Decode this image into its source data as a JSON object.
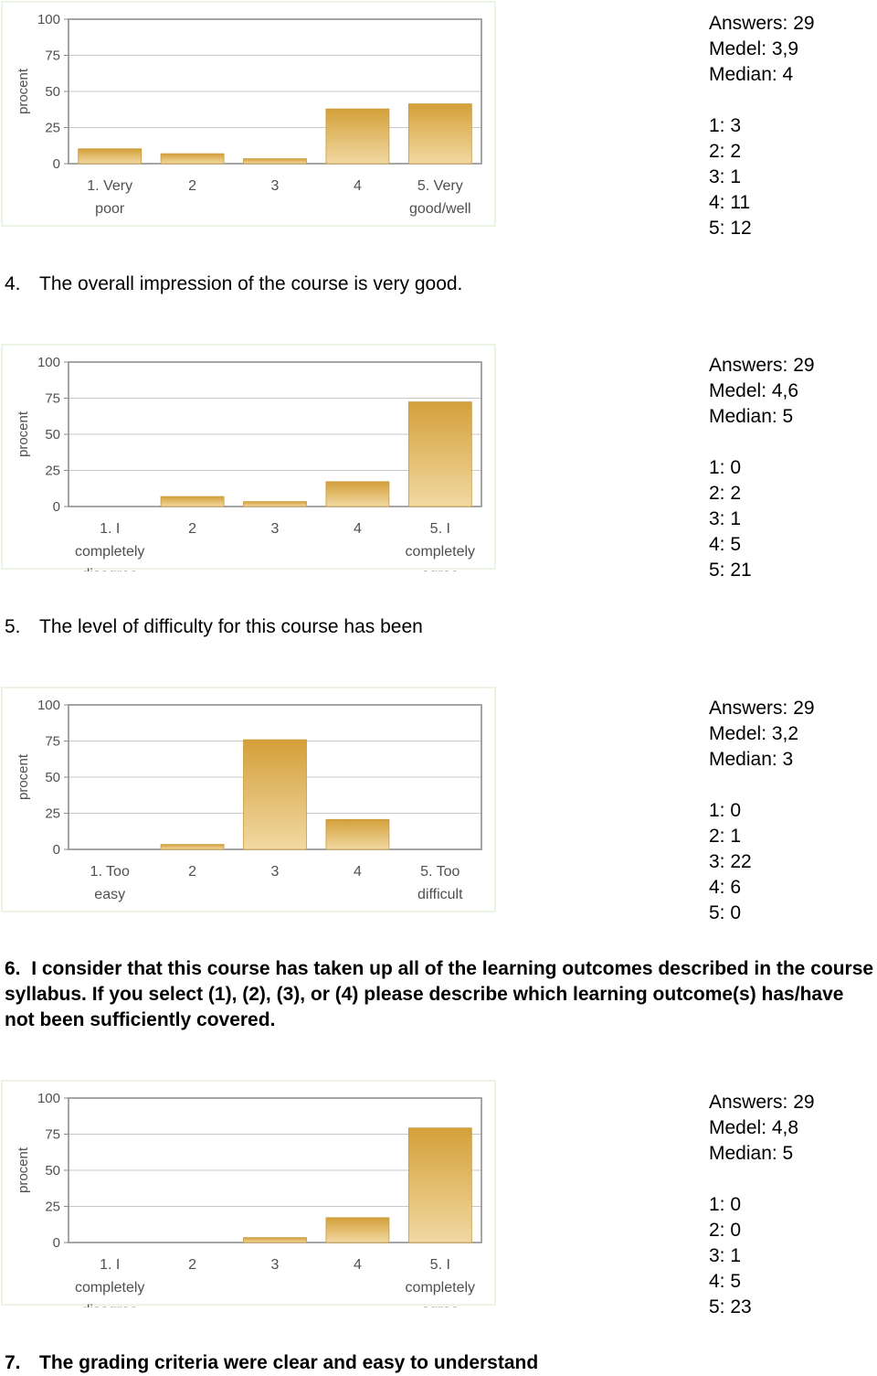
{
  "chart_data": [
    {
      "type": "bar",
      "ylabel": "procent",
      "yticks": [
        100,
        75,
        50,
        25,
        0
      ],
      "ylim": [
        0,
        100
      ],
      "categories": [
        [
          "1. Very",
          "poor"
        ],
        [
          "2"
        ],
        [
          "3"
        ],
        [
          "4"
        ],
        [
          "5. Very",
          "good/well"
        ]
      ],
      "values": [
        10.3,
        6.9,
        3.4,
        37.9,
        41.4
      ],
      "stats": {
        "answers": "Answers: 29",
        "medel": "Medel: 3,9",
        "median": "Median: 4",
        "counts": [
          "1: 3",
          "2: 2",
          "3: 1",
          "4: 11",
          "5: 12"
        ]
      }
    },
    {
      "type": "bar",
      "ylabel": "procent",
      "yticks": [
        100,
        75,
        50,
        25,
        0
      ],
      "ylim": [
        0,
        100
      ],
      "categories": [
        [
          "1. I",
          "completely",
          "disagree"
        ],
        [
          "2"
        ],
        [
          "3"
        ],
        [
          "4"
        ],
        [
          "5. I",
          "completely",
          "agree"
        ]
      ],
      "values": [
        0,
        6.9,
        3.4,
        17.2,
        72.4
      ],
      "stats": {
        "answers": "Answers: 29",
        "medel": "Medel: 4,6",
        "median": "Median: 5",
        "counts": [
          "1: 0",
          "2: 2",
          "3: 1",
          "4: 5",
          "5: 21"
        ]
      }
    },
    {
      "type": "bar",
      "ylabel": "procent",
      "yticks": [
        100,
        75,
        50,
        25,
        0
      ],
      "ylim": [
        0,
        100
      ],
      "categories": [
        [
          "1. Too",
          "easy"
        ],
        [
          "2"
        ],
        [
          "3"
        ],
        [
          "4"
        ],
        [
          "5. Too",
          "difficult"
        ]
      ],
      "values": [
        0,
        3.4,
        75.9,
        20.7,
        0
      ],
      "stats": {
        "answers": "Answers: 29",
        "medel": "Medel: 3,2",
        "median": "Median: 3",
        "counts": [
          "1: 0",
          "2: 1",
          "3: 22",
          "4: 6",
          "5: 0"
        ]
      }
    },
    {
      "type": "bar",
      "ylabel": "procent",
      "yticks": [
        100,
        75,
        50,
        25,
        0
      ],
      "ylim": [
        0,
        100
      ],
      "categories": [
        [
          "1. I",
          "completely",
          "disagree"
        ],
        [
          "2"
        ],
        [
          "3"
        ],
        [
          "4"
        ],
        [
          "5. I",
          "completely",
          "agree"
        ]
      ],
      "values": [
        0,
        0,
        3.4,
        17.2,
        79.3
      ],
      "stats": {
        "answers": "Answers: 29",
        "medel": "Medel: 4,8",
        "median": "Median: 5",
        "counts": [
          "1: 0",
          "2: 0",
          "3: 1",
          "4: 5",
          "5: 23"
        ]
      }
    }
  ],
  "questions": {
    "q4": {
      "num": "4.",
      "text": "The overall impression of the course is very good."
    },
    "q5": {
      "num": "5.",
      "text": "The level of difficulty for this course has been"
    },
    "q6": {
      "num": "6.",
      "text": "I consider that this course has taken up all of the learning outcomes described in the course syllabus. If you select (1), (2), (3), or (4) please describe which learning outcome(s) has/have not been sufficiently covered."
    },
    "q7": {
      "num": "7.",
      "text": "The grading criteria were clear and easy to understand"
    }
  },
  "colors": {
    "bar_top": "#d4a03a",
    "bar_bottom": "#f1d9a2",
    "bar_edge": "#c89a3c",
    "axis": "#888888",
    "grid": "#c8c8c8",
    "tick_text": "#505050",
    "frame": "#e6f0dc"
  }
}
